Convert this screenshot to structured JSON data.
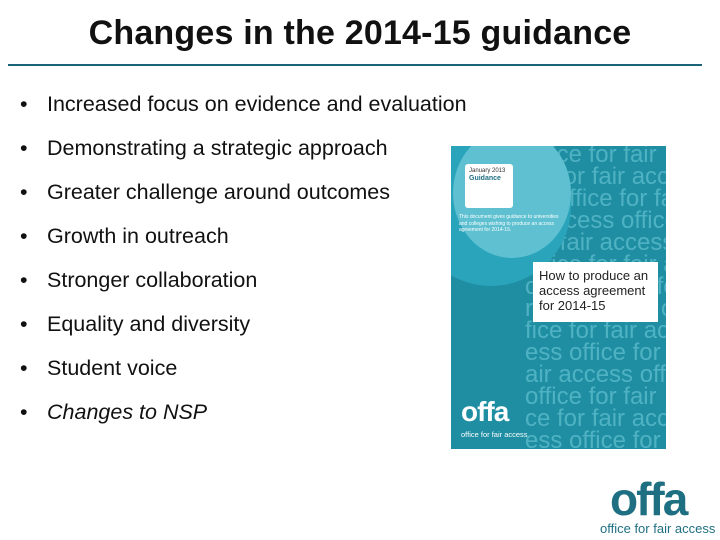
{
  "slide": {
    "title": "Changes in the 2014-15 guidance",
    "bullets": [
      {
        "text": "Increased focus on evidence and evaluation",
        "italic": false
      },
      {
        "text": "Demonstrating a strategic approach",
        "italic": false
      },
      {
        "text": "Greater challenge around outcomes",
        "italic": false
      },
      {
        "text": "Growth in outreach",
        "italic": false
      },
      {
        "text": "Stronger collaboration",
        "italic": false
      },
      {
        "text": "Equality and diversity",
        "italic": false
      },
      {
        "text": "Student voice",
        "italic": false
      },
      {
        "text": "Changes to NSP",
        "italic": true
      }
    ],
    "bullet_glyph": "•"
  },
  "cover": {
    "tag_top": "January 2013",
    "tag_label": "Guidance",
    "blurb": "This document gives guidance to universities and colleges wishing to produce an access agreement for 2014-15.",
    "heading": "How to produce an access agreement for 2014-15",
    "logo_word": "offa",
    "logo_sub": "office for fair access",
    "background_text": [
      "office for fair",
      "ce for fair acce",
      "ss office for fa",
      "r access office",
      "for fair access",
      "office for fair a",
      "ccess office fo",
      "r fair access of",
      "fice for fair acc",
      "ess office for fa",
      "air access offi",
      "office for fair",
      "ce for fair acce",
      "ess office for fa"
    ],
    "colors": {
      "base": "#1f8ea3",
      "text": "#4fb2c3",
      "heading_bg": "#ffffff"
    }
  },
  "brand": {
    "word": "offa",
    "sub": "office for fair access",
    "color": "#1f6f82"
  }
}
